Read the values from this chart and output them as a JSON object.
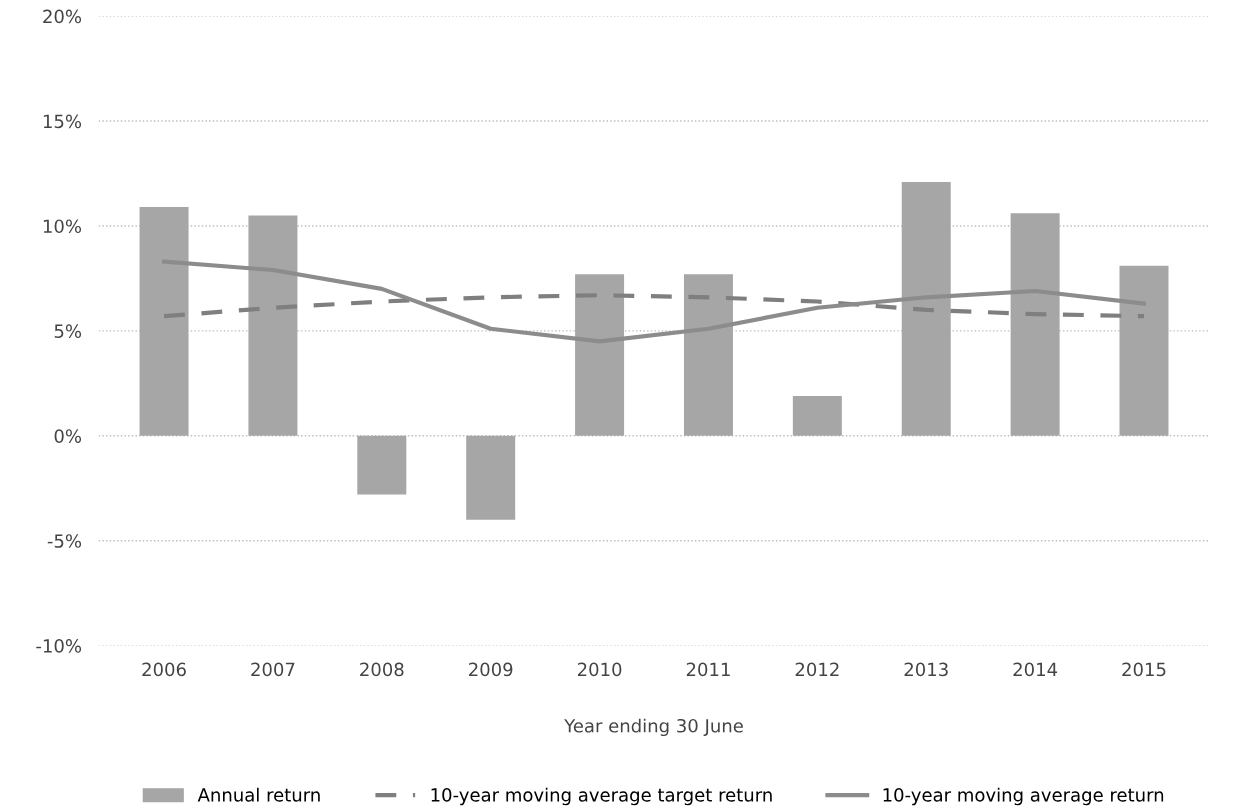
{
  "chart_data": {
    "type": "bar",
    "xlabel": "Year ending 30 June",
    "categories": [
      "2006",
      "2007",
      "2008",
      "2009",
      "2010",
      "2011",
      "2012",
      "2013",
      "2014",
      "2015"
    ],
    "series": [
      {
        "name": "Annual return",
        "color": "#a6a6a6",
        "values": [
          10.9,
          10.5,
          -2.8,
          -4.0,
          7.7,
          7.7,
          1.9,
          12.1,
          10.6,
          8.1
        ]
      },
      {
        "name": "10-year moving average target return",
        "type": "line",
        "line_style": "dashed",
        "color": "#7f7f7f",
        "values": [
          5.7,
          6.1,
          6.4,
          6.6,
          6.7,
          6.6,
          6.4,
          6.0,
          5.8,
          5.7
        ]
      },
      {
        "name": "10-year moving average return",
        "type": "line",
        "line_style": "solid",
        "color": "#8c8c8c",
        "values": [
          8.3,
          7.9,
          7.0,
          5.1,
          4.5,
          5.1,
          6.1,
          6.6,
          6.9,
          6.3
        ]
      }
    ],
    "ylim": [
      -10,
      20
    ],
    "yticks": [
      {
        "value": -10,
        "label": "-10%"
      },
      {
        "value": -5,
        "label": "-5%"
      },
      {
        "value": 0,
        "label": "0%"
      },
      {
        "value": 5,
        "label": "5%"
      },
      {
        "value": 10,
        "label": "10%"
      },
      {
        "value": 15,
        "label": "15%"
      },
      {
        "value": 20,
        "label": "20%"
      }
    ],
    "grid": "y",
    "legend": "bottom"
  }
}
